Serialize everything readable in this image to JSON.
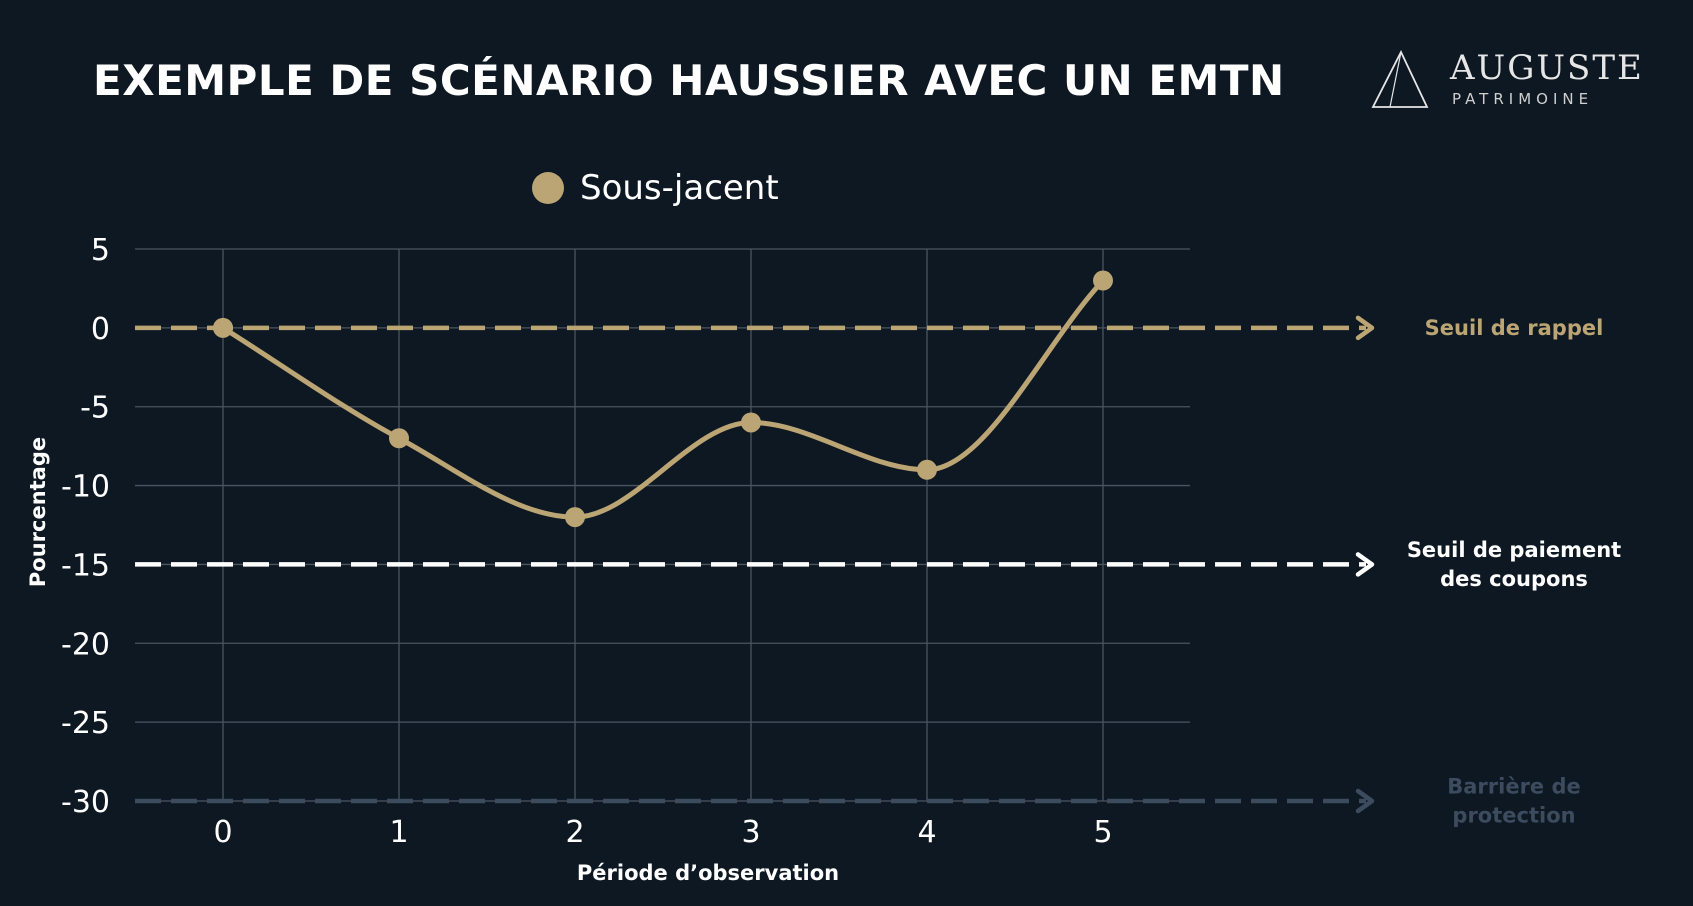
{
  "title": "EXEMPLE DE SCÉNARIO HAUSSIER AVEC UN EMTN",
  "logo": {
    "main": "AUGUSTE",
    "sub": "PATRIMOINE",
    "icon": "triangle-logo-icon"
  },
  "colors": {
    "background": "#0e1822",
    "series": "#bba574",
    "grid": "#4a5561",
    "text": "#ffffff",
    "rappel": "#bba574",
    "coupon": "#ffffff",
    "protection": "#3c4b5e"
  },
  "chart_data": {
    "type": "line",
    "title": "EXEMPLE DE SCÉNARIO HAUSSIER AVEC UN EMTN",
    "xlabel": "Période d’observation",
    "ylabel": "Pourcentage",
    "x": [
      0,
      1,
      2,
      3,
      4,
      5
    ],
    "x_ticks": [
      "0",
      "1",
      "2",
      "3",
      "4",
      "5"
    ],
    "y_ticks": [
      "5",
      "0",
      "-5",
      "-10",
      "-15",
      "-20",
      "-25",
      "-30"
    ],
    "xlim": [
      -0.5,
      5.5
    ],
    "ylim": [
      -30,
      5
    ],
    "grid": true,
    "legend_position": "top-center",
    "smooth": true,
    "series": [
      {
        "name": "Sous-jacent",
        "values": [
          0,
          -7,
          -12,
          -6,
          -9,
          3
        ]
      }
    ],
    "thresholds": [
      {
        "label_lines": [
          "Seuil de rappel"
        ],
        "value": 0,
        "color": "#bba574"
      },
      {
        "label_lines": [
          "Seuil de paiement",
          "des coupons"
        ],
        "value": -15,
        "color": "#ffffff"
      },
      {
        "label_lines": [
          "Barrière de",
          "protection"
        ],
        "value": -30,
        "color": "#3c4b5e"
      }
    ]
  }
}
